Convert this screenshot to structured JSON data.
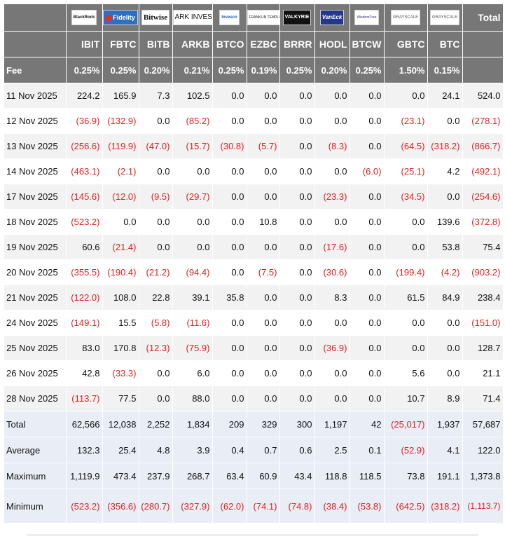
{
  "chart_data": {
    "type": "table",
    "title": "",
    "issuers": [
      "BlackRock",
      "Fidelity",
      "Bitwise",
      "ARK INVEST",
      "Invesco",
      "FRANKLIN TEMPLETON",
      "VALKYRIE",
      "VanEck",
      "WisdomTree",
      "GRAYSCALE",
      "GRAYSCALE"
    ],
    "total_label": "Total",
    "columns": [
      "IBIT",
      "FBTC",
      "BITB",
      "ARKB",
      "BTCO",
      "EZBC",
      "BRRR",
      "HODL",
      "BTCW",
      "GBTC",
      "BTC"
    ],
    "fee_label": "Fee",
    "fees": [
      "0.25%",
      "0.25%",
      "0.20%",
      "0.21%",
      "0.25%",
      "0.19%",
      "0.25%",
      "0.20%",
      "0.25%",
      "1.50%",
      "0.15%"
    ],
    "rows": [
      {
        "date": "11 Nov 2025",
        "cells": [
          "224.2",
          "165.9",
          "7.3",
          "102.5",
          "0.0",
          "0.0",
          "0.0",
          "0.0",
          "0.0",
          "0.0",
          "24.1"
        ],
        "total": "524.0"
      },
      {
        "date": "12 Nov 2025",
        "cells": [
          "(36.9)",
          "(132.9)",
          "0.0",
          "(85.2)",
          "0.0",
          "0.0",
          "0.0",
          "0.0",
          "0.0",
          "(23.1)",
          "0.0"
        ],
        "total": "(278.1)"
      },
      {
        "date": "13 Nov 2025",
        "cells": [
          "(256.6)",
          "(119.9)",
          "(47.0)",
          "(15.7)",
          "(30.8)",
          "(5.7)",
          "0.0",
          "(8.3)",
          "0.0",
          "(64.5)",
          "(318.2)"
        ],
        "total": "(866.7)"
      },
      {
        "date": "14 Nov 2025",
        "cells": [
          "(463.1)",
          "(2.1)",
          "0.0",
          "0.0",
          "0.0",
          "0.0",
          "0.0",
          "0.0",
          "(6.0)",
          "(25.1)",
          "4.2"
        ],
        "total": "(492.1)"
      },
      {
        "date": "17 Nov 2025",
        "cells": [
          "(145.6)",
          "(12.0)",
          "(9.5)",
          "(29.7)",
          "0.0",
          "0.0",
          "0.0",
          "(23.3)",
          "0.0",
          "(34.5)",
          "0.0"
        ],
        "total": "(254.6)"
      },
      {
        "date": "18 Nov 2025",
        "cells": [
          "(523.2)",
          "0.0",
          "0.0",
          "0.0",
          "0.0",
          "10.8",
          "0.0",
          "0.0",
          "0.0",
          "0.0",
          "139.6"
        ],
        "total": "(372.8)"
      },
      {
        "date": "19 Nov 2025",
        "cells": [
          "60.6",
          "(21.4)",
          "0.0",
          "0.0",
          "0.0",
          "0.0",
          "0.0",
          "(17.6)",
          "0.0",
          "0.0",
          "53.8"
        ],
        "total": "75.4"
      },
      {
        "date": "20 Nov 2025",
        "cells": [
          "(355.5)",
          "(190.4)",
          "(21.2)",
          "(94.4)",
          "0.0",
          "(7.5)",
          "0.0",
          "(30.6)",
          "0.0",
          "(199.4)",
          "(4.2)"
        ],
        "total": "(903.2)"
      },
      {
        "date": "21 Nov 2025",
        "cells": [
          "(122.0)",
          "108.0",
          "22.8",
          "39.1",
          "35.8",
          "0.0",
          "0.0",
          "8.3",
          "0.0",
          "61.5",
          "84.9"
        ],
        "total": "238.4"
      },
      {
        "date": "24 Nov 2025",
        "cells": [
          "(149.1)",
          "15.5",
          "(5.8)",
          "(11.6)",
          "0.0",
          "0.0",
          "0.0",
          "0.0",
          "0.0",
          "0.0",
          "0.0"
        ],
        "total": "(151.0)"
      },
      {
        "date": "25 Nov 2025",
        "cells": [
          "83.0",
          "170.8",
          "(12.3)",
          "(75.9)",
          "0.0",
          "0.0",
          "0.0",
          "(36.9)",
          "0.0",
          "0.0",
          "0.0"
        ],
        "total": "128.7"
      },
      {
        "date": "26 Nov 2025",
        "cells": [
          "42.8",
          "(33.3)",
          "0.0",
          "6.0",
          "0.0",
          "0.0",
          "0.0",
          "0.0",
          "0.0",
          "5.6",
          "0.0"
        ],
        "total": "21.1"
      },
      {
        "date": "28 Nov 2025",
        "cells": [
          "(113.7)",
          "77.5",
          "0.0",
          "88.0",
          "0.0",
          "0.0",
          "0.0",
          "0.0",
          "0.0",
          "10.7",
          "8.9"
        ],
        "total": "71.4"
      }
    ],
    "summary": [
      {
        "label": "Total",
        "cells": [
          "62,566",
          "12,038",
          "2,252",
          "1,834",
          "209",
          "329",
          "300",
          "1,197",
          "42",
          "(25,017)",
          "1,937"
        ],
        "total": "57,687"
      },
      {
        "label": "Average",
        "cells": [
          "132.3",
          "25.4",
          "4.8",
          "3.9",
          "0.4",
          "0.7",
          "0.6",
          "2.5",
          "0.1",
          "(52.9)",
          "4.1"
        ],
        "total": "122.0"
      },
      {
        "label": "Maximum",
        "cells": [
          "1,119.9",
          "473.4",
          "237.9",
          "268.7",
          "63.4",
          "60.9",
          "43.4",
          "118.8",
          "118.5",
          "73.8",
          "191.1"
        ],
        "total": "1,373.8"
      },
      {
        "label": "Minimum",
        "cells": [
          "(523.2)",
          "(356.6)",
          "(280.7)",
          "(327.9)",
          "(62.0)",
          "(74.1)",
          "(74.8)",
          "(38.4)",
          "(53.8)",
          "(642.5)",
          "(318.2)"
        ],
        "total": "(1,113.7)"
      }
    ]
  },
  "colors": {
    "header_bg": "#777777",
    "negative": "#e02020",
    "summary_bg": "#e8edf6",
    "stripe": "#f2f2f2"
  }
}
